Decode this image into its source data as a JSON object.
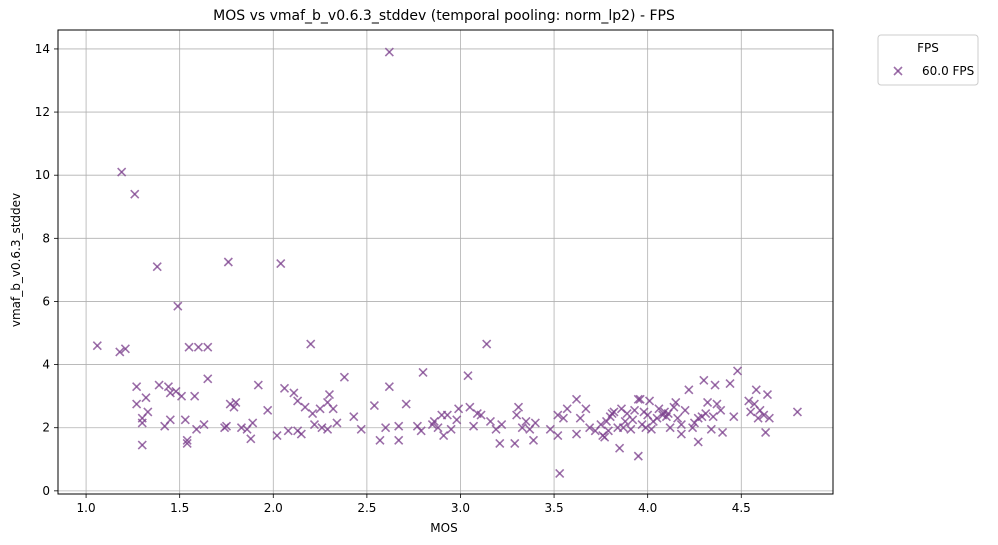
{
  "chart_data": {
    "type": "scatter",
    "title": "MOS vs vmaf_b_v0.6.3_stddev (temporal pooling: norm_lp2) - FPS",
    "xlabel": "MOS",
    "ylabel": "vmaf_b_v0.6.3_stddev",
    "xlim": [
      0.85,
      4.99
    ],
    "ylim": [
      -0.1,
      14.6
    ],
    "xticks": [
      "1.0",
      "1.5",
      "2.0",
      "2.5",
      "3.0",
      "3.5",
      "4.0",
      "4.5"
    ],
    "yticks": [
      "0",
      "2",
      "4",
      "6",
      "8",
      "10",
      "12",
      "14"
    ],
    "grid": true,
    "legend": {
      "title": "FPS",
      "position": "outside-top-right"
    },
    "series": [
      {
        "name": "60.0 FPS",
        "color": "#7b3f8c",
        "marker": "x",
        "points": [
          [
            1.06,
            4.6
          ],
          [
            1.18,
            4.4
          ],
          [
            1.19,
            10.1
          ],
          [
            1.21,
            4.5
          ],
          [
            1.26,
            9.4
          ],
          [
            1.27,
            3.3
          ],
          [
            1.27,
            2.75
          ],
          [
            1.3,
            2.3
          ],
          [
            1.3,
            2.15
          ],
          [
            1.3,
            1.45
          ],
          [
            1.32,
            2.95
          ],
          [
            1.33,
            2.5
          ],
          [
            1.38,
            7.1
          ],
          [
            1.39,
            3.35
          ],
          [
            1.42,
            2.05
          ],
          [
            1.44,
            3.3
          ],
          [
            1.45,
            2.25
          ],
          [
            1.45,
            3.1
          ],
          [
            1.48,
            3.15
          ],
          [
            1.49,
            5.85
          ],
          [
            1.51,
            3.0
          ],
          [
            1.53,
            2.25
          ],
          [
            1.54,
            1.6
          ],
          [
            1.54,
            1.5
          ],
          [
            1.55,
            4.55
          ],
          [
            1.58,
            3.0
          ],
          [
            1.59,
            1.95
          ],
          [
            1.6,
            4.55
          ],
          [
            1.63,
            2.1
          ],
          [
            1.65,
            4.55
          ],
          [
            1.65,
            3.55
          ],
          [
            1.74,
            2.0
          ],
          [
            1.75,
            2.05
          ],
          [
            1.76,
            7.25
          ],
          [
            1.77,
            2.75
          ],
          [
            1.79,
            2.65
          ],
          [
            1.8,
            2.8
          ],
          [
            1.83,
            2.0
          ],
          [
            1.86,
            1.95
          ],
          [
            1.88,
            1.65
          ],
          [
            1.89,
            2.15
          ],
          [
            1.92,
            3.35
          ],
          [
            1.97,
            2.55
          ],
          [
            2.02,
            1.75
          ],
          [
            2.04,
            7.2
          ],
          [
            2.06,
            3.25
          ],
          [
            2.08,
            1.9
          ],
          [
            2.11,
            3.1
          ],
          [
            2.13,
            2.85
          ],
          [
            2.13,
            1.9
          ],
          [
            2.15,
            1.8
          ],
          [
            2.17,
            2.65
          ],
          [
            2.2,
            4.65
          ],
          [
            2.21,
            2.45
          ],
          [
            2.22,
            2.1
          ],
          [
            2.25,
            2.6
          ],
          [
            2.26,
            2.0
          ],
          [
            2.29,
            2.8
          ],
          [
            2.29,
            1.95
          ],
          [
            2.3,
            3.05
          ],
          [
            2.32,
            2.6
          ],
          [
            2.34,
            2.15
          ],
          [
            2.38,
            3.6
          ],
          [
            2.43,
            2.35
          ],
          [
            2.47,
            1.95
          ],
          [
            2.54,
            2.7
          ],
          [
            2.57,
            1.6
          ],
          [
            2.6,
            2.0
          ],
          [
            2.62,
            3.3
          ],
          [
            2.62,
            13.9
          ],
          [
            2.67,
            2.05
          ],
          [
            2.67,
            1.6
          ],
          [
            2.71,
            2.75
          ],
          [
            2.77,
            2.05
          ],
          [
            2.79,
            1.9
          ],
          [
            2.8,
            3.75
          ],
          [
            2.85,
            2.1
          ],
          [
            2.86,
            2.2
          ],
          [
            2.88,
            2.0
          ],
          [
            2.9,
            2.4
          ],
          [
            2.91,
            1.75
          ],
          [
            2.93,
            2.4
          ],
          [
            2.95,
            1.95
          ],
          [
            2.98,
            2.25
          ],
          [
            2.99,
            2.6
          ],
          [
            3.04,
            3.65
          ],
          [
            3.05,
            2.65
          ],
          [
            3.07,
            2.05
          ],
          [
            3.09,
            2.45
          ],
          [
            3.11,
            2.4
          ],
          [
            3.14,
            4.65
          ],
          [
            3.16,
            2.2
          ],
          [
            3.19,
            1.95
          ],
          [
            3.21,
            1.5
          ],
          [
            3.22,
            2.1
          ],
          [
            3.29,
            1.5
          ],
          [
            3.3,
            2.4
          ],
          [
            3.31,
            2.65
          ],
          [
            3.33,
            2.0
          ],
          [
            3.35,
            2.2
          ],
          [
            3.37,
            1.95
          ],
          [
            3.39,
            1.6
          ],
          [
            3.4,
            2.15
          ],
          [
            3.48,
            1.95
          ],
          [
            3.52,
            2.4
          ],
          [
            3.52,
            1.75
          ],
          [
            3.53,
            0.55
          ],
          [
            3.55,
            2.3
          ],
          [
            3.57,
            2.6
          ],
          [
            3.62,
            2.9
          ],
          [
            3.62,
            1.8
          ],
          [
            3.64,
            2.3
          ],
          [
            3.67,
            2.6
          ],
          [
            3.69,
            2.0
          ],
          [
            3.72,
            1.9
          ],
          [
            3.75,
            2.1
          ],
          [
            3.76,
            1.75
          ],
          [
            3.77,
            1.7
          ],
          [
            3.78,
            2.2
          ],
          [
            3.79,
            1.9
          ],
          [
            3.8,
            2.35
          ],
          [
            3.81,
            2.45
          ],
          [
            3.82,
            2.5
          ],
          [
            3.84,
            2.0
          ],
          [
            3.85,
            1.35
          ],
          [
            3.86,
            2.6
          ],
          [
            3.87,
            2.0
          ],
          [
            3.88,
            2.2
          ],
          [
            3.89,
            2.45
          ],
          [
            3.91,
            1.95
          ],
          [
            3.92,
            2.25
          ],
          [
            3.93,
            2.55
          ],
          [
            3.95,
            2.9
          ],
          [
            3.95,
            1.1
          ],
          [
            3.96,
            2.9
          ],
          [
            3.97,
            2.1
          ],
          [
            3.98,
            2.5
          ],
          [
            3.99,
            2.0
          ],
          [
            4.0,
            2.4
          ],
          [
            4.01,
            2.85
          ],
          [
            4.02,
            1.95
          ],
          [
            4.03,
            2.2
          ],
          [
            4.05,
            2.3
          ],
          [
            4.06,
            2.6
          ],
          [
            4.08,
            2.4
          ],
          [
            4.09,
            2.5
          ],
          [
            4.1,
            2.35
          ],
          [
            4.11,
            2.45
          ],
          [
            4.12,
            2.0
          ],
          [
            4.14,
            2.65
          ],
          [
            4.15,
            2.8
          ],
          [
            4.16,
            2.3
          ],
          [
            4.18,
            2.1
          ],
          [
            4.18,
            1.8
          ],
          [
            4.2,
            2.55
          ],
          [
            4.22,
            3.2
          ],
          [
            4.24,
            2.0
          ],
          [
            4.25,
            2.15
          ],
          [
            4.27,
            2.3
          ],
          [
            4.27,
            1.55
          ],
          [
            4.29,
            2.35
          ],
          [
            4.3,
            3.5
          ],
          [
            4.31,
            2.45
          ],
          [
            4.32,
            2.8
          ],
          [
            4.34,
            1.95
          ],
          [
            4.35,
            2.35
          ],
          [
            4.36,
            3.35
          ],
          [
            4.37,
            2.75
          ],
          [
            4.39,
            2.55
          ],
          [
            4.4,
            1.85
          ],
          [
            4.44,
            3.4
          ],
          [
            4.46,
            2.35
          ],
          [
            4.48,
            3.8
          ],
          [
            4.54,
            2.85
          ],
          [
            4.55,
            2.5
          ],
          [
            4.57,
            2.75
          ],
          [
            4.58,
            3.2
          ],
          [
            4.59,
            2.3
          ],
          [
            4.6,
            2.55
          ],
          [
            4.62,
            2.4
          ],
          [
            4.63,
            1.85
          ],
          [
            4.64,
            3.05
          ],
          [
            4.65,
            2.3
          ],
          [
            4.8,
            2.5
          ]
        ]
      }
    ]
  }
}
